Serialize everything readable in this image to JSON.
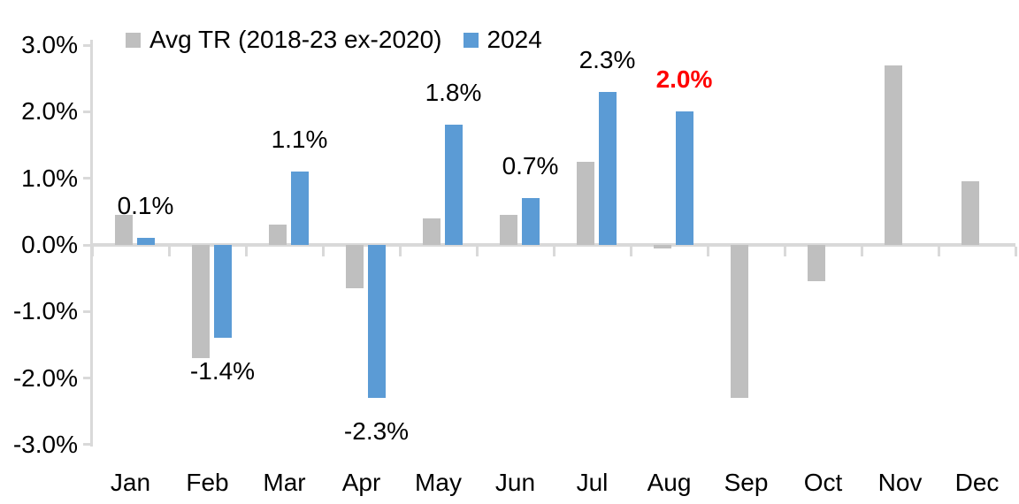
{
  "chart_data": {
    "type": "bar",
    "title": "",
    "categories": [
      "Jan",
      "Feb",
      "Mar",
      "Apr",
      "May",
      "Jun",
      "Jul",
      "Aug",
      "Sep",
      "Oct",
      "Nov",
      "Dec"
    ],
    "series": [
      {
        "name": "Avg TR (2018-23 ex-2020)",
        "color": "#BFBFBF",
        "values": [
          0.45,
          -1.7,
          0.3,
          -0.65,
          0.4,
          0.45,
          1.25,
          -0.05,
          -2.3,
          -0.55,
          2.7,
          0.95
        ]
      },
      {
        "name": "2024",
        "color": "#5B9BD5",
        "values": [
          0.1,
          -1.4,
          1.1,
          -2.3,
          1.8,
          0.7,
          2.3,
          2.0,
          null,
          null,
          null,
          null
        ]
      }
    ],
    "data_labels": {
      "series": "2024",
      "texts": [
        "0.1%",
        "-1.4%",
        "1.1%",
        "-2.3%",
        "1.8%",
        "0.7%",
        "2.3%",
        "2.0%",
        null,
        null,
        null,
        null
      ],
      "highlight_index": 7,
      "highlight_color": "#FF0000",
      "default_color": "#000000"
    },
    "ylabel": "",
    "xlabel": "",
    "ylim": [
      -3.0,
      3.0
    ],
    "ytick_labels": [
      "3.0%",
      "2.0%",
      "1.0%",
      "0.0%",
      "-1.0%",
      "-2.0%",
      "-3.0%"
    ],
    "ytick_values": [
      3.0,
      2.0,
      1.0,
      0.0,
      -1.0,
      -2.0,
      -3.0
    ],
    "grid": false,
    "legend_position": "top",
    "axis_color": "#D9D9D9",
    "text_color": "#000000",
    "background_color": "#FFFFFF"
  }
}
